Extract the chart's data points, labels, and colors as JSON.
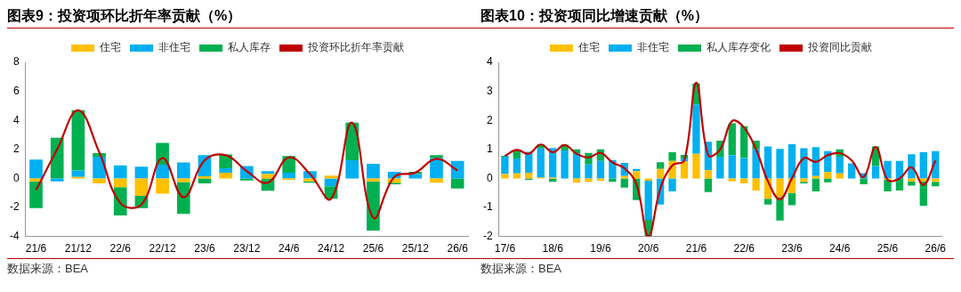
{
  "chart_data": [
    {
      "type": "bar",
      "title": "图表9：投资项环比折年率贡献（%）",
      "annotations": [
        "数据来源：BEA"
      ],
      "stacked": true,
      "legend": "top",
      "grid": false,
      "categories": [
        "21/6",
        null,
        "21/12",
        null,
        "22/6",
        null,
        "22/12",
        null,
        "23/6",
        null,
        "23/12",
        null,
        "24/6",
        null,
        "24/12",
        null,
        "25/6",
        null,
        "25/12",
        null,
        "26/6"
      ],
      "ylim": [
        -4,
        8
      ],
      "yticks": [
        -4,
        -2,
        0,
        2,
        4,
        6,
        8
      ],
      "series": [
        {
          "name": "住宅",
          "color": "#ffc000",
          "values": [
            -0.2,
            0,
            0.1,
            -0.35,
            -0.6,
            -1.2,
            -1.05,
            -0.25,
            0.15,
            0.4,
            0,
            0.3,
            -0.1,
            -0.2,
            0.2,
            0,
            -0.2,
            -0.3,
            0,
            -0.3,
            0
          ]
        },
        {
          "name": "非住宅",
          "color": "#00b0f0",
          "values": [
            1.3,
            -0.2,
            0.45,
            1.5,
            0.9,
            0.8,
            0.95,
            1.1,
            1.45,
            0.3,
            0.85,
            0.2,
            0.4,
            0.5,
            -0.55,
            1.25,
            1.0,
            0.45,
            0.3,
            1.4,
            1.2
          ]
        },
        {
          "name": "私人库存",
          "color": "#00b050",
          "values": [
            -1.85,
            2.8,
            4.15,
            0.25,
            -1.95,
            -0.85,
            1.5,
            -2.2,
            -0.35,
            0.95,
            -0.15,
            -0.85,
            1.15,
            -0.1,
            -0.85,
            2.6,
            -3.4,
            -0.1,
            0.15,
            0.2,
            -0.7
          ]
        },
        {
          "name": "投资环比折年率贡献",
          "type": "line",
          "color": "#c00000",
          "values": [
            -0.8,
            2.0,
            4.7,
            1.8,
            -1.7,
            -1.8,
            1.4,
            -1.3,
            1.25,
            1.6,
            0.5,
            -0.3,
            1.45,
            0.3,
            -1.4,
            3.85,
            -2.7,
            0.1,
            0.4,
            1.35,
            0.55
          ]
        }
      ]
    },
    {
      "type": "bar",
      "title": "图表10：投资项同比增速贡献（%）",
      "annotations": [
        "数据来源：BEA"
      ],
      "stacked": true,
      "legend": "top",
      "grid": false,
      "categories": [
        "17/6",
        null,
        null,
        null,
        "18/6",
        null,
        null,
        null,
        "19/6",
        null,
        null,
        null,
        "20/6",
        null,
        null,
        null,
        "21/6",
        null,
        null,
        null,
        "22/6",
        null,
        null,
        null,
        "23/6",
        null,
        null,
        null,
        "24/6",
        null,
        null,
        null,
        "25/6",
        null,
        null,
        null,
        "26/6"
      ],
      "ylim": [
        -2,
        4
      ],
      "yticks": [
        -2,
        -1,
        0,
        1,
        2,
        3,
        4
      ],
      "series": [
        {
          "name": "住宅",
          "color": "#ffc000",
          "values": [
            0.15,
            0.17,
            0.2,
            0.03,
            0.03,
            0,
            -0.15,
            -0.12,
            -0.08,
            0,
            0.08,
            0.25,
            -0.08,
            0.33,
            0.6,
            0.58,
            0.85,
            0.28,
            0,
            -0.1,
            -0.17,
            -0.42,
            -0.7,
            -0.65,
            -0.5,
            -0.12,
            0.08,
            0.22,
            0.17,
            0,
            0,
            0,
            -0.05,
            0,
            -0.1,
            -0.1,
            -0.12
          ]
        },
        {
          "name": "非住宅",
          "color": "#00b0f0",
          "values": [
            0.6,
            0.52,
            0.72,
            1.0,
            1.02,
            0.96,
            0.85,
            0.48,
            0.6,
            0.63,
            0.45,
            0.08,
            -1.35,
            -0.9,
            -0.45,
            0.1,
            1.7,
            0.98,
            0.75,
            0.8,
            0.7,
            1.0,
            1.1,
            1.02,
            1.18,
            1.04,
            1.0,
            0.72,
            0.58,
            0.52,
            0.18,
            0.43,
            0.6,
            0.6,
            0.83,
            0.9,
            0.94
          ]
        },
        {
          "name": "私人库存变化",
          "color": "#00b050",
          "values": [
            0.03,
            0.28,
            -0.05,
            0.15,
            -0.12,
            0.2,
            0.15,
            0.4,
            0.4,
            -0.12,
            -0.32,
            -0.75,
            -0.57,
            0.23,
            0.3,
            0.13,
            0.72,
            -0.47,
            0.55,
            1.1,
            1.1,
            0.3,
            -0.2,
            -0.8,
            -0.42,
            -0.05,
            -0.45,
            -0.13,
            0.25,
            0,
            -0.2,
            0.67,
            -0.4,
            -0.42,
            -0.15,
            -0.85,
            -0.15
          ]
        },
        {
          "name": "投资同比贡献",
          "type": "line",
          "color": "#c00000",
          "values": [
            0.78,
            0.98,
            0.85,
            1.17,
            0.9,
            1.15,
            0.85,
            0.72,
            0.88,
            0.55,
            0.35,
            -0.2,
            -2,
            -0.35,
            0.45,
            0.62,
            3.3,
            0.8,
            1.0,
            1.98,
            1.75,
            1.0,
            -0.1,
            -0.72,
            0,
            0.7,
            0.57,
            0.8,
            0.87,
            0.62,
            0.05,
            1.08,
            -0.05,
            0,
            0.38,
            -0.22,
            0.62
          ]
        }
      ]
    }
  ]
}
